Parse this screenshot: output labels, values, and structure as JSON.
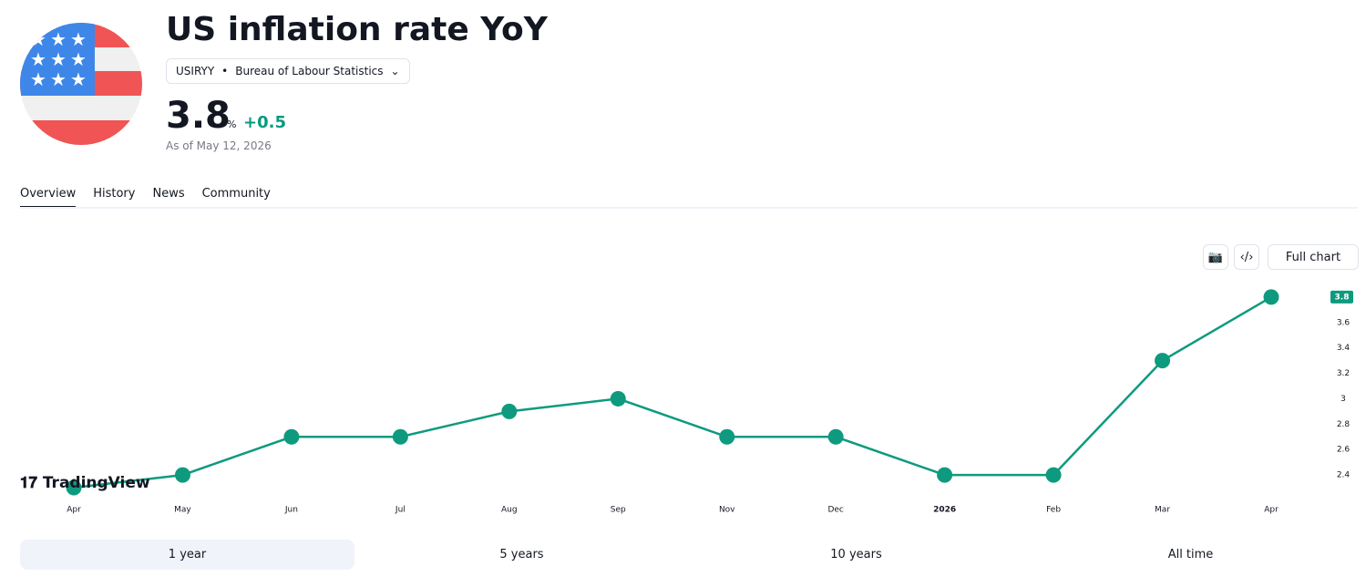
{
  "header": {
    "title": "US inflation rate YoY",
    "symbol": "USIRYY",
    "source": "Bureau of Labour Statistics",
    "value": 3.8,
    "unit": "%",
    "change": "+0.5",
    "as_of": "As of May 12, 2026"
  },
  "tabs": [
    "Overview",
    "History",
    "News",
    "Community"
  ],
  "toolbar": {
    "full_chart": "Full chart"
  },
  "logo": "TradingView",
  "ranges": [
    "1 year",
    "5 years",
    "10 years",
    "All time"
  ],
  "chart_data": {
    "type": "line",
    "categories": [
      "Apr",
      "May",
      "Jun",
      "Jul",
      "Aug",
      "Sep",
      "Nov",
      "Dec",
      "2026",
      "Feb",
      "Mar",
      "Apr"
    ],
    "series": [
      {
        "color": "#0e9a7e",
        "values": [
          2.3,
          2.4,
          2.7,
          2.7,
          2.9,
          3.0,
          2.7,
          2.7,
          2.4,
          2.4,
          3.3,
          3.8
        ]
      }
    ],
    "ylim": [
      2.25,
      3.95
    ],
    "yticks": [
      2.4,
      2.6,
      2.8,
      3,
      3.2,
      3.4,
      3.6
    ]
  }
}
